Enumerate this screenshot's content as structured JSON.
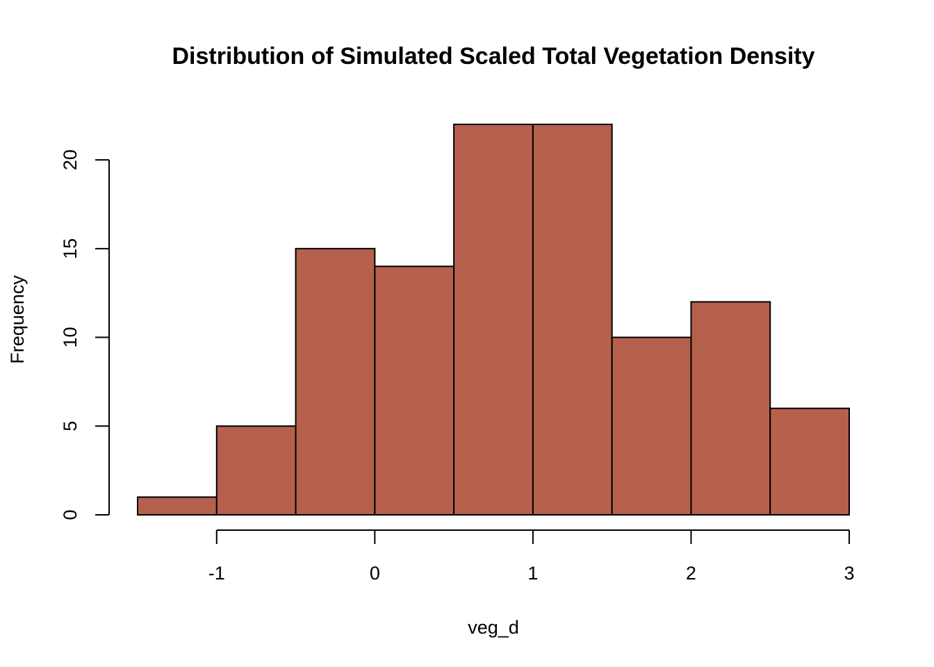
{
  "chart_data": {
    "type": "histogram",
    "title": "Distribution of Simulated Scaled Total Vegetation Density",
    "xlabel": "veg_d",
    "ylabel": "Frequency",
    "bins": [
      {
        "start": -1.5,
        "end": -1.0,
        "count": 1
      },
      {
        "start": -1.0,
        "end": -0.5,
        "count": 5
      },
      {
        "start": -0.5,
        "end": 0.0,
        "count": 15
      },
      {
        "start": 0.0,
        "end": 0.5,
        "count": 14
      },
      {
        "start": 0.5,
        "end": 1.0,
        "count": 22
      },
      {
        "start": 1.0,
        "end": 1.5,
        "count": 22
      },
      {
        "start": 1.5,
        "end": 2.0,
        "count": 10
      },
      {
        "start": 2.0,
        "end": 2.5,
        "count": 12
      },
      {
        "start": 2.5,
        "end": 3.0,
        "count": 6
      }
    ],
    "x_ticks": [
      -1,
      0,
      1,
      2,
      3
    ],
    "x_tick_labels": [
      "-1",
      "0",
      "1",
      "2",
      "3"
    ],
    "y_ticks": [
      0,
      5,
      10,
      15,
      20
    ],
    "y_tick_labels": [
      "0",
      "5",
      "10",
      "15",
      "20"
    ],
    "xlim": [
      -1.5,
      3.0
    ],
    "ylim": [
      0,
      22
    ],
    "bar_color": "#b5604d",
    "grid": false
  }
}
